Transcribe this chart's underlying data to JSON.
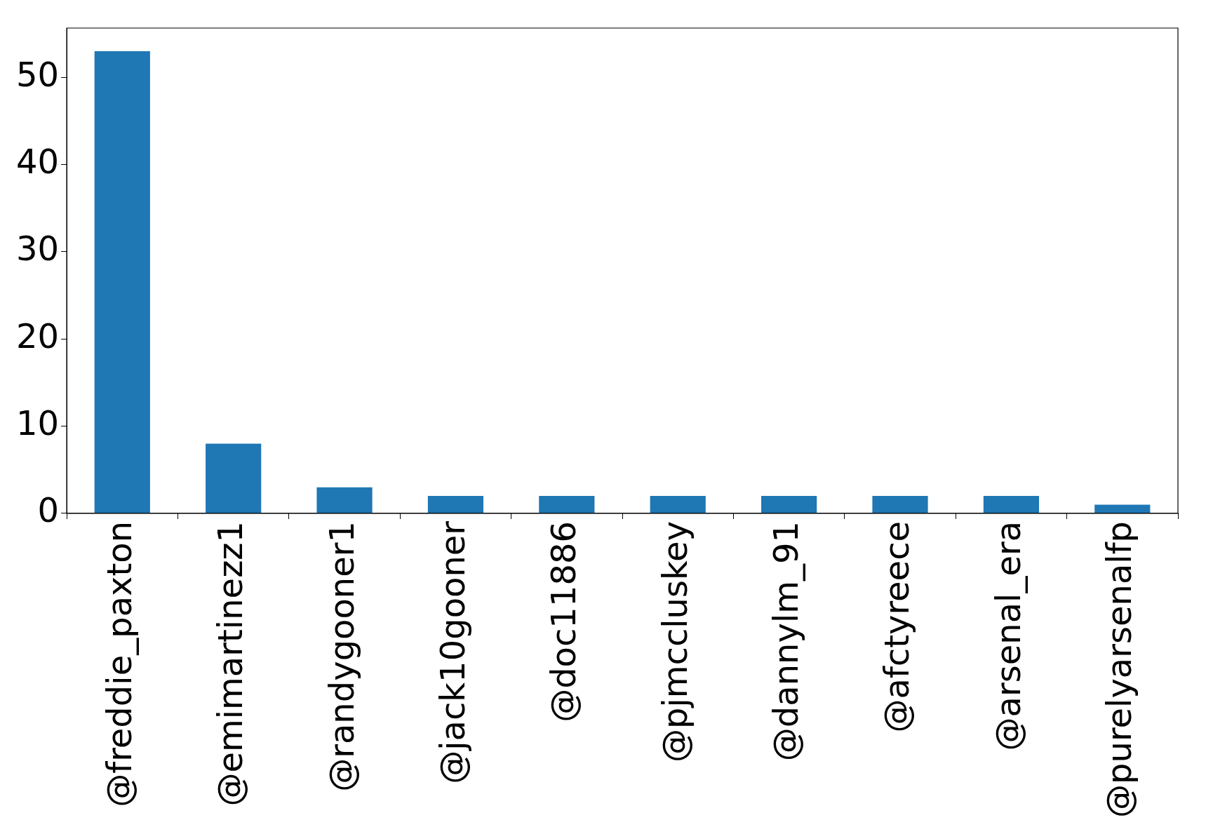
{
  "chart_data": {
    "type": "bar",
    "categories": [
      "@freddie_paxton",
      "@emimartinezz1",
      "@randygooner1",
      "@jack10gooner",
      "@doc11886",
      "@pjmccluskey",
      "@dannylm_91",
      "@afctyreece",
      "@arsenal_era",
      "@purelyarsenalfp"
    ],
    "values": [
      53,
      8,
      3,
      2,
      2,
      2,
      2,
      2,
      2,
      1
    ],
    "color": "#1f77b4",
    "ylim": [
      0,
      55.65
    ],
    "yticks": [
      0,
      10,
      20,
      30,
      40,
      50
    ],
    "grid": false,
    "legend": false
  }
}
